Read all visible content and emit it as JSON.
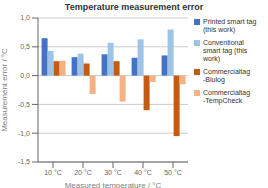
{
  "chart_data": {
    "type": "bar",
    "title": "Temperature measurement error",
    "x_label": "Measured temperature / °C",
    "y_label": "Measurement error / °C",
    "categories": [
      "10 °C",
      "20 °C",
      "30 °C",
      "40 °C",
      "50 °C"
    ],
    "series": [
      {
        "name": "Printed smart tag\n(this work)",
        "color": "#4472C4",
        "values": [
          0.65,
          0.32,
          0.37,
          0.31,
          0.35
        ]
      },
      {
        "name": "Conventional\nsmart tag (this\nwork)",
        "color": "#9DC3E6",
        "values": [
          0.43,
          0.38,
          0.57,
          0.63,
          0.8
        ]
      },
      {
        "name": "Commercialtag\n-Blulog",
        "color": "#C55A11",
        "values": [
          0.25,
          0.21,
          0.25,
          -0.6,
          -1.05
        ]
      },
      {
        "name": "Commercialtag\n-TempCheck",
        "color": "#F4B183",
        "values": [
          0.26,
          -0.32,
          -0.45,
          -0.11,
          -0.15
        ]
      }
    ],
    "ylim": [
      -1.5,
      1.0
    ],
    "yticks": [
      {
        "value": -1.5,
        "label": "-1,5"
      },
      {
        "value": -1.0,
        "label": "-1,0"
      },
      {
        "value": -0.5,
        "label": "-0,5"
      },
      {
        "value": 0.0,
        "label": "0,0"
      },
      {
        "value": 0.5,
        "label": "0,5"
      },
      {
        "value": 1.0,
        "label": "1,0"
      }
    ],
    "grid": true,
    "legend": "right"
  }
}
